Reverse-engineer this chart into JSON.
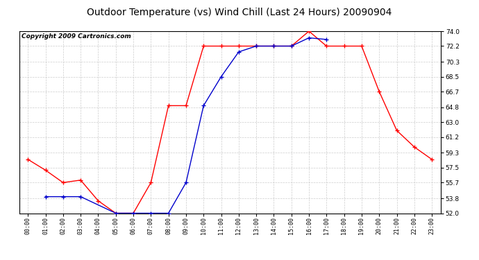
{
  "title": "Outdoor Temperature (vs) Wind Chill (Last 24 Hours) 20090904",
  "copyright": "Copyright 2009 Cartronics.com",
  "hours": [
    "00:00",
    "01:00",
    "02:00",
    "03:00",
    "04:00",
    "05:00",
    "06:00",
    "07:00",
    "08:00",
    "09:00",
    "10:00",
    "11:00",
    "12:00",
    "13:00",
    "14:00",
    "15:00",
    "16:00",
    "17:00",
    "18:00",
    "19:00",
    "20:00",
    "21:00",
    "22:00",
    "23:00"
  ],
  "temp": [
    58.5,
    57.2,
    55.7,
    56.0,
    53.5,
    52.0,
    52.0,
    55.7,
    65.0,
    65.0,
    72.2,
    72.2,
    72.2,
    72.2,
    72.2,
    72.2,
    74.0,
    72.2,
    72.2,
    72.2,
    66.7,
    62.0,
    60.0,
    58.5
  ],
  "windchill": [
    null,
    54.0,
    54.0,
    54.0,
    null,
    52.0,
    52.0,
    52.0,
    52.0,
    55.7,
    65.0,
    68.5,
    71.5,
    72.2,
    72.2,
    72.2,
    73.2,
    73.0,
    null,
    null,
    null,
    null,
    null,
    null
  ],
  "ylim": [
    52.0,
    74.0
  ],
  "yticks": [
    52.0,
    53.8,
    55.7,
    57.5,
    59.3,
    61.2,
    63.0,
    64.8,
    66.7,
    68.5,
    70.3,
    72.2,
    74.0
  ],
  "temp_color": "#ff0000",
  "windchill_color": "#0000cc",
  "bg_color": "#ffffff",
  "grid_color": "#c0c0c0",
  "title_fontsize": 10,
  "copyright_fontsize": 6.5,
  "fig_width": 6.9,
  "fig_height": 3.75,
  "dpi": 100
}
